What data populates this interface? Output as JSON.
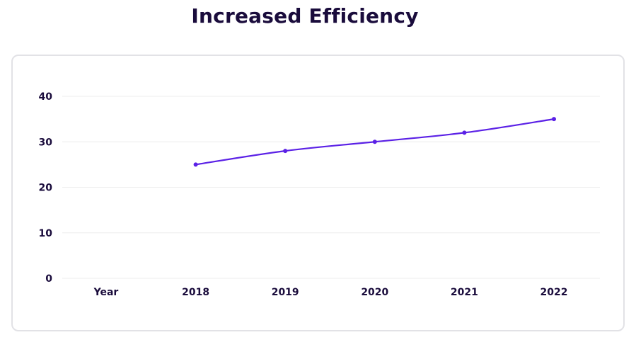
{
  "title": "Increased Efficiency",
  "colors": {
    "line": "#5b21e6",
    "text": "#1a0c3c",
    "grid": "#eeeeee",
    "border": "#e2e2e6"
  },
  "chart_data": {
    "type": "line",
    "title": "Increased Efficiency",
    "categories": [
      "Year",
      "2018",
      "2019",
      "2020",
      "2021",
      "2022"
    ],
    "series": [
      {
        "values": [
          null,
          25,
          28,
          30,
          32,
          35
        ]
      }
    ],
    "ylim": [
      0,
      40
    ],
    "yticks": [
      0,
      10,
      20,
      30,
      40
    ],
    "grid": true,
    "legend": "none"
  }
}
